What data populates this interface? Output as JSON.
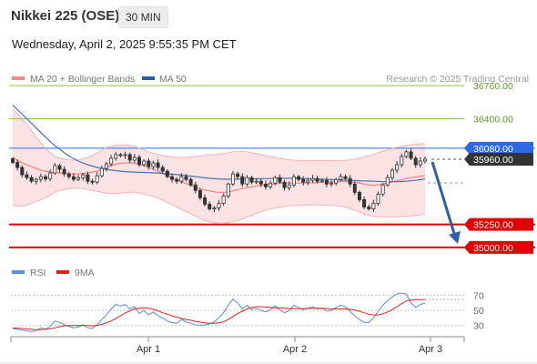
{
  "header": {
    "title": "Nikkei 225 (OSE)",
    "timeframe": "30 MIN",
    "datetime": "Wednesday, April 2, 2025 9:55:35 PM CET"
  },
  "legend": {
    "items": [
      {
        "label": "MA 20 + Bollinger Bands",
        "color": "#f28b8b"
      },
      {
        "label": "MA 50",
        "color": "#2c5ba8"
      }
    ],
    "credit": "Research © 2025 Trading Central"
  },
  "rsi_legend": {
    "items": [
      {
        "label": "RSI",
        "color": "#5b8de0"
      },
      {
        "label": "9MA",
        "color": "#e02020"
      }
    ]
  },
  "x_ticks": [
    "Apr 1",
    "Apr 2",
    "Apr 3"
  ],
  "chart_data": {
    "type": "candlestick",
    "price_ylim": [
      34920,
      36900
    ],
    "levels": [
      {
        "label": "36760.00",
        "value": 36760,
        "style": "resistance-green",
        "color": "#8cc63f"
      },
      {
        "label": "36400.00",
        "value": 36400,
        "style": "resistance-green",
        "color": "#8cc63f"
      },
      {
        "label": "36080.00",
        "value": 36080,
        "style": "pivot",
        "color": "#2d6be4"
      },
      {
        "label": "35960.00",
        "value": 35960,
        "style": "last-price",
        "color": "#333333"
      },
      {
        "label": "35250.00",
        "value": 35250,
        "style": "support",
        "color": "#e00000"
      },
      {
        "label": "35000.00",
        "value": 35000,
        "style": "support",
        "color": "#e00000"
      }
    ],
    "close": [
      35925,
      35870,
      35790,
      35760,
      35720,
      35740,
      35770,
      35745,
      35810,
      35890,
      35850,
      35800,
      35770,
      35740,
      35760,
      35790,
      35720,
      35710,
      35780,
      35860,
      35910,
      35970,
      36010,
      36000,
      36010,
      35950,
      35980,
      35900,
      35940,
      35880,
      35920,
      35870,
      35830,
      35770,
      35740,
      35720,
      35770,
      35740,
      35680,
      35620,
      35540,
      35470,
      35420,
      35430,
      35480,
      35560,
      35690,
      35800,
      35770,
      35690,
      35760,
      35710,
      35720,
      35690,
      35660,
      35700,
      35760,
      35710,
      35650,
      35680,
      35770,
      35740,
      35710,
      35730,
      35750,
      35720,
      35730,
      35690,
      35700,
      35740,
      35770,
      35750,
      35690,
      35600,
      35520,
      35440,
      35420,
      35480,
      35580,
      35680,
      35760,
      35840,
      35900,
      35990,
      36040,
      35970,
      35900,
      35940,
      35960
    ],
    "ma20": [
      35980,
      35950,
      35920,
      35900,
      35880,
      35860,
      35840,
      35830,
      35820,
      35815,
      35810,
      35805,
      35800,
      35800,
      35800,
      35805,
      35810,
      35820,
      35830,
      35850,
      35870,
      35890,
      35905,
      35915,
      35920,
      35920,
      35915,
      35905,
      35890,
      35870,
      35850,
      35830,
      35805,
      35780,
      35755,
      35735,
      35715,
      35695,
      35675,
      35655,
      35640,
      35625,
      35615,
      35605,
      35600,
      35600,
      35605,
      35615,
      35630,
      35640,
      35650,
      35660,
      35670,
      35675,
      35680,
      35685,
      35690,
      35695,
      35700,
      35700,
      35700,
      35700,
      35700,
      35700,
      35702,
      35705,
      35708,
      35710,
      35712,
      35714,
      35715,
      35716,
      35714,
      35710,
      35702,
      35690,
      35680,
      35675,
      35680,
      35690,
      35700,
      35712,
      35725,
      35738,
      35750,
      35760,
      35768,
      35775,
      35780
    ],
    "bb_upper": [
      36500,
      36460,
      36400,
      36340,
      36270,
      36200,
      36140,
      36080,
      36030,
      35990,
      35970,
      35960,
      35955,
      35950,
      35955,
      35965,
      35980,
      36000,
      36030,
      36060,
      36085,
      36100,
      36110,
      36115,
      36115,
      36110,
      36100,
      36080,
      36060,
      36040,
      36025,
      36010,
      36000,
      35990,
      35985,
      35980,
      35980,
      35982,
      35985,
      35990,
      35995,
      36000,
      36005,
      36010,
      36015,
      36020,
      36030,
      36040,
      36045,
      36045,
      36040,
      36030,
      36020,
      36010,
      36000,
      35990,
      35980,
      35970,
      35960,
      35955,
      35950,
      35948,
      35946,
      35945,
      35945,
      35945,
      35945,
      35945,
      35945,
      35945,
      35945,
      35948,
      35952,
      35960,
      35970,
      35985,
      36000,
      36015,
      36030,
      36045,
      36060,
      36075,
      36090,
      36100,
      36110,
      36118,
      36124,
      36128,
      36130
    ],
    "bb_lower": [
      35460,
      35450,
      35450,
      35460,
      35480,
      35500,
      35520,
      35540,
      35570,
      35600,
      35620,
      35630,
      35640,
      35645,
      35645,
      35640,
      35630,
      35620,
      35610,
      35600,
      35590,
      35585,
      35585,
      35590,
      35595,
      35600,
      35600,
      35590,
      35580,
      35570,
      35555,
      35535,
      35515,
      35490,
      35465,
      35440,
      35415,
      35390,
      35365,
      35340,
      35315,
      35295,
      35280,
      35270,
      35265,
      35265,
      35270,
      35280,
      35295,
      35310,
      35330,
      35350,
      35370,
      35390,
      35405,
      35420,
      35430,
      35440,
      35448,
      35452,
      35455,
      35458,
      35460,
      35462,
      35462,
      35462,
      35462,
      35460,
      35458,
      35455,
      35450,
      35440,
      35425,
      35405,
      35385,
      35365,
      35350,
      35340,
      35335,
      35332,
      35330,
      35330,
      35332,
      35335,
      35340,
      35345,
      35350,
      35355,
      35360
    ],
    "ma50": [
      36550,
      36500,
      36450,
      36400,
      36350,
      36300,
      36250,
      36200,
      36150,
      36110,
      36070,
      36030,
      35995,
      35965,
      35940,
      35920,
      35900,
      35885,
      35870,
      35860,
      35850,
      35842,
      35835,
      35830,
      35825,
      35822,
      35820,
      35818,
      35816,
      35814,
      35812,
      35810,
      35806,
      35802,
      35797,
      35792,
      35787,
      35782,
      35776,
      35770,
      35764,
      35758,
      35752,
      35748,
      35745,
      35743,
      35742,
      35742,
      35743,
      35744,
      35745,
      35746,
      35747,
      35748,
      35749,
      35750,
      35751,
      35752,
      35752,
      35752,
      35752,
      35751,
      35750,
      35748,
      35746,
      35744,
      35742,
      35740,
      35738,
      35736,
      35734,
      35732,
      35730,
      35728,
      35726,
      35724,
      35722,
      35720,
      35718,
      35716,
      35715,
      35714,
      35715,
      35717,
      35720,
      35725,
      35730,
      35738,
      35745
    ],
    "projection": {
      "from": 35960,
      "to": 35000
    },
    "rsi": {
      "ylim": [
        20,
        78
      ],
      "ticks": [
        70,
        50,
        30
      ],
      "rsi": [
        26,
        25,
        24,
        23,
        22,
        23,
        27,
        25,
        29,
        36,
        34,
        31,
        29,
        27,
        28,
        31,
        27,
        26,
        31,
        38,
        44,
        52,
        58,
        56,
        58,
        52,
        55,
        46,
        50,
        44,
        48,
        43,
        40,
        36,
        34,
        33,
        38,
        35,
        33,
        31,
        30,
        31,
        32,
        35,
        40,
        47,
        57,
        65,
        60,
        52,
        57,
        51,
        53,
        50,
        48,
        51,
        56,
        51,
        47,
        50,
        57,
        54,
        51,
        53,
        55,
        52,
        53,
        49,
        50,
        54,
        57,
        55,
        49,
        43,
        38,
        34,
        34,
        40,
        49,
        57,
        63,
        68,
        72,
        73,
        72,
        60,
        54,
        58,
        60
      ],
      "ma9": [
        27,
        26.5,
        26,
        25.5,
        25,
        24.5,
        24.5,
        25,
        25.5,
        27,
        28.5,
        29.5,
        30,
        30,
        30,
        30,
        30,
        29.5,
        30,
        31.5,
        33.5,
        36,
        39.5,
        43,
        46.5,
        49.5,
        52,
        53,
        53.5,
        53,
        51.5,
        49.5,
        47,
        45,
        43,
        41,
        39.5,
        38,
        37,
        35.5,
        34.5,
        33.5,
        33,
        33,
        33.5,
        35,
        38,
        42,
        46,
        49,
        52,
        54,
        55,
        55,
        54.5,
        54,
        53.5,
        53.5,
        53,
        52.5,
        52.5,
        52.5,
        52.5,
        52.5,
        53,
        53,
        53,
        52.5,
        52,
        52,
        52,
        52,
        51.5,
        50.5,
        49,
        47,
        45,
        44,
        44,
        45.5,
        48,
        51,
        55,
        59,
        62.5,
        64,
        64.5,
        64.5,
        64.5
      ]
    }
  }
}
